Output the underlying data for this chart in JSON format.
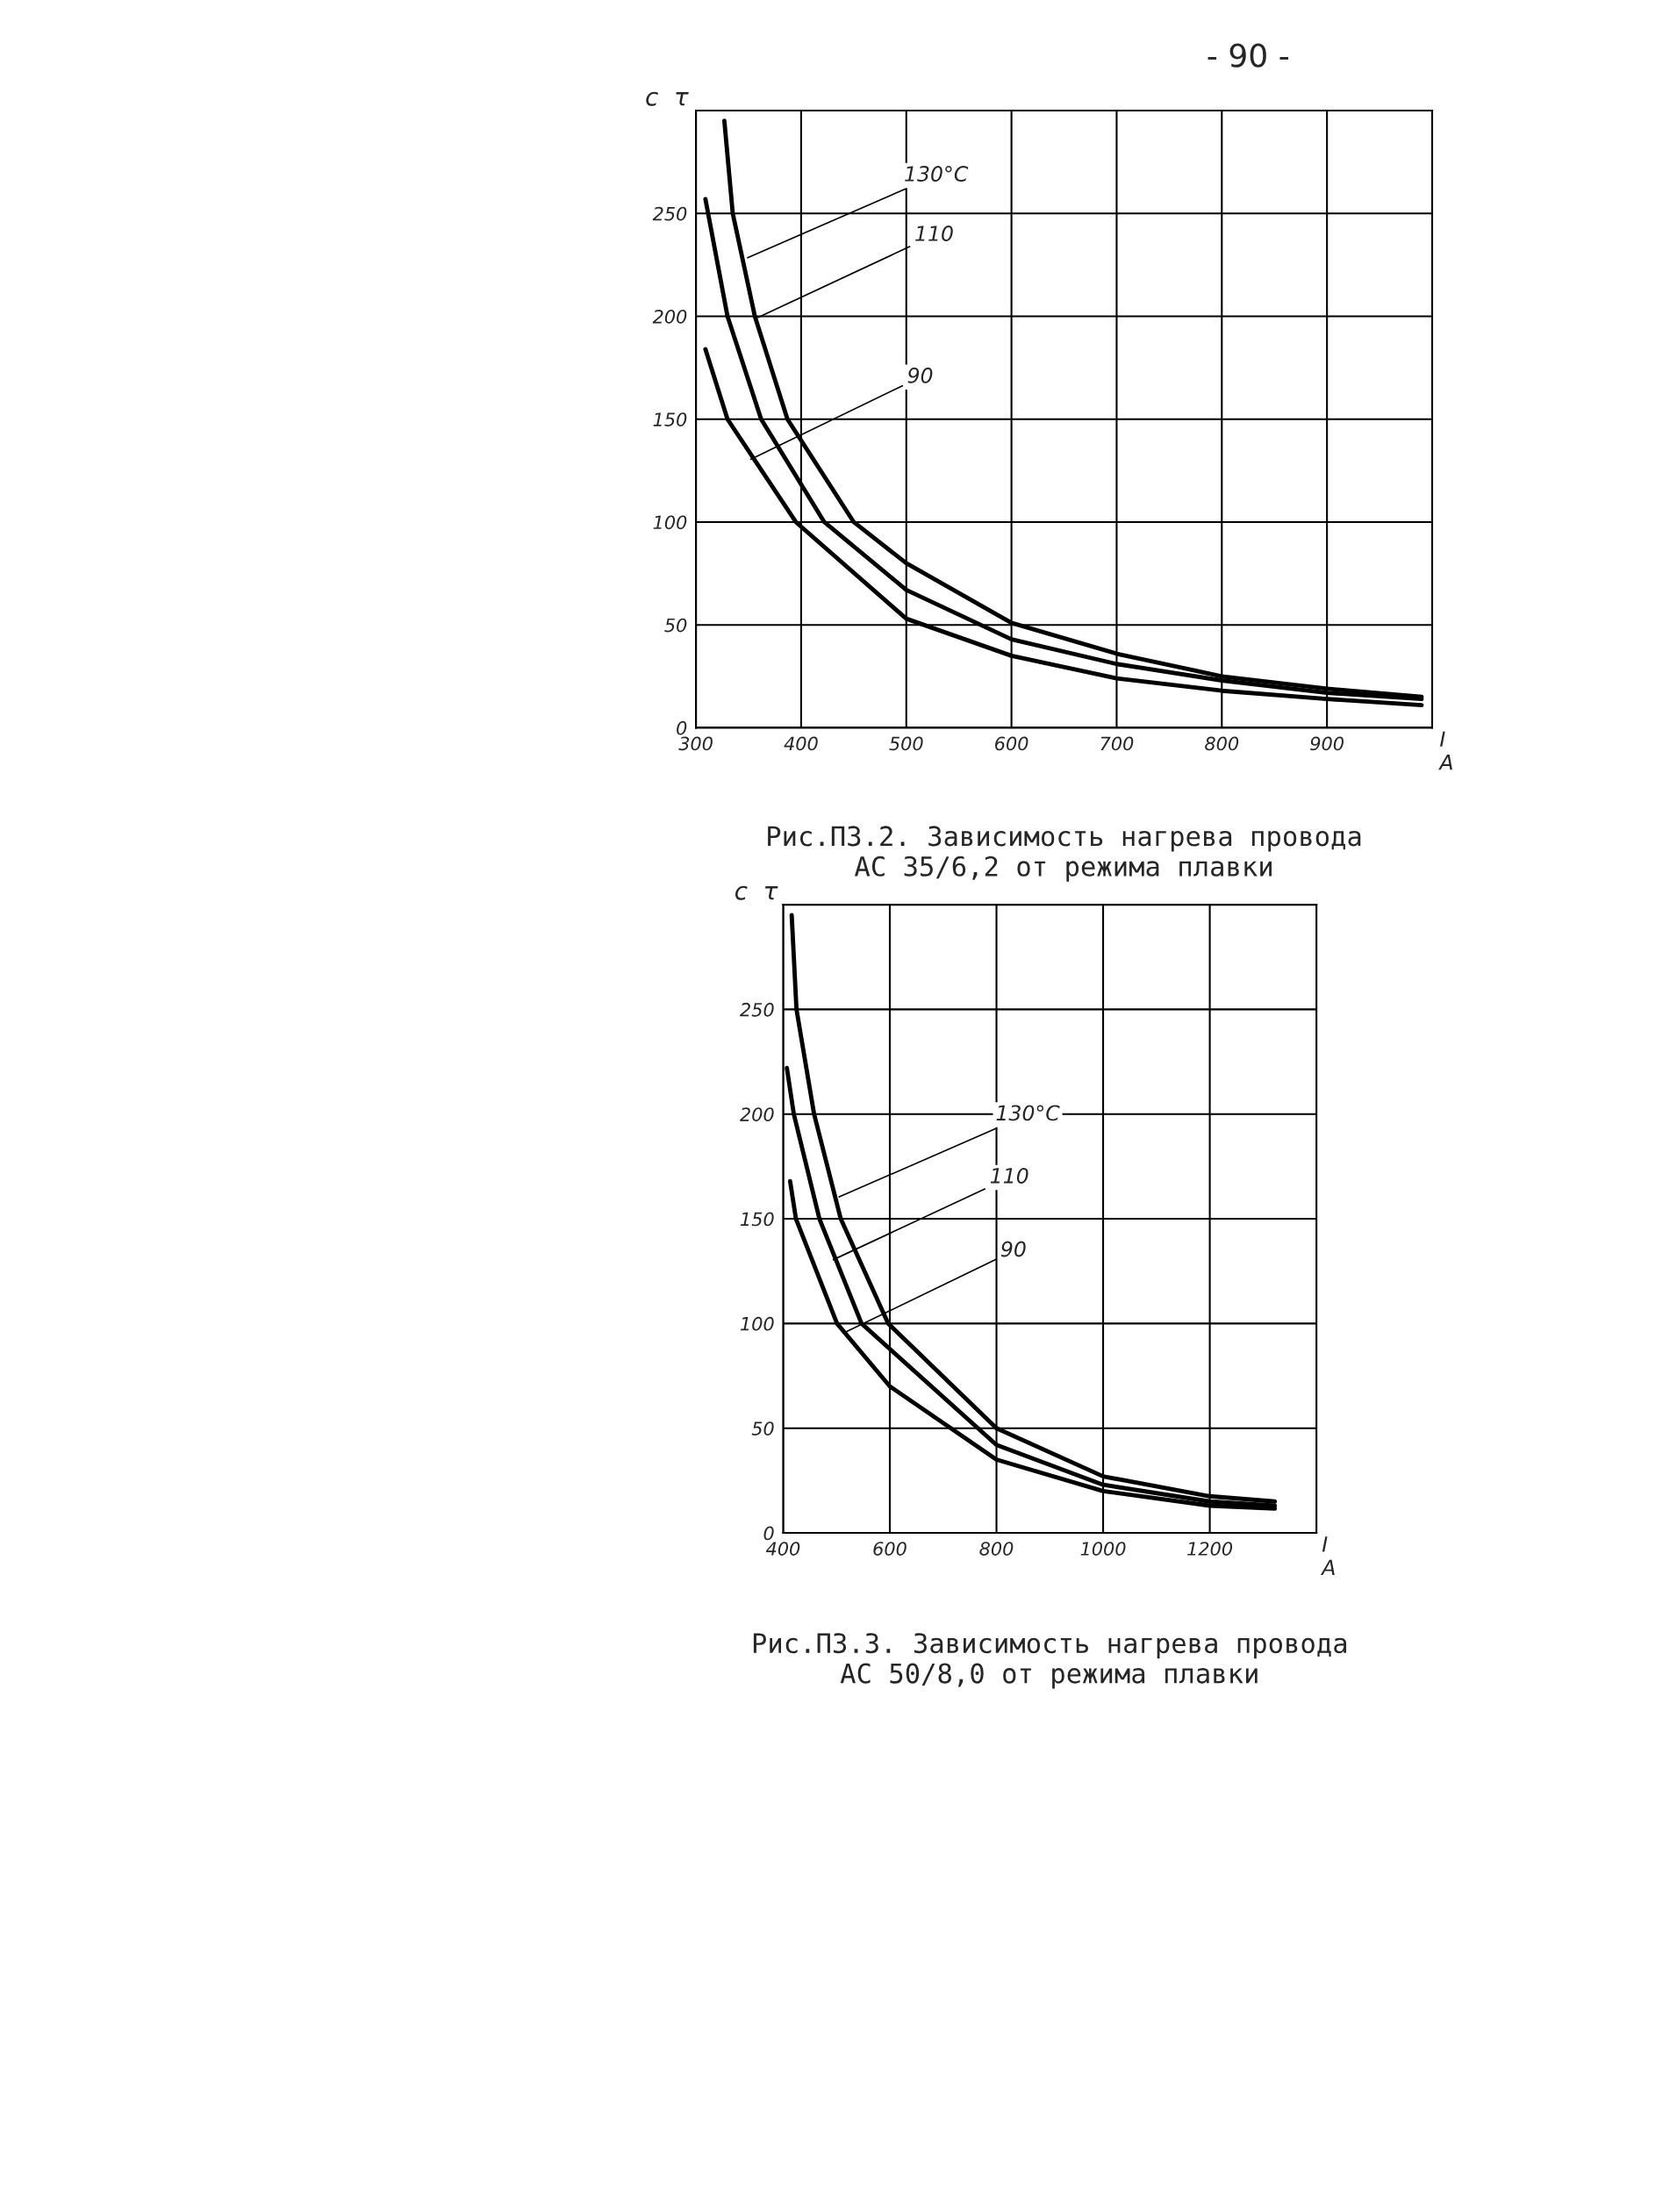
{
  "chart_data": [
    {
      "type": "line",
      "title": "Рис.П3.2. Зависимость нагрева провода\nАС 35/6,2 от режима плавки",
      "xlabel": "I\nА",
      "ylabel": "с  τ",
      "xlim": [
        300,
        1000
      ],
      "xticks": [
        300,
        400,
        500,
        600,
        700,
        800,
        900
      ],
      "ylim": [
        0,
        300
      ],
      "yticks": [
        0,
        50,
        100,
        150,
        200,
        250
      ],
      "grid": true,
      "marker": "none",
      "line_style": "solid",
      "series": [
        {
          "color": "#000000",
          "x": [
            327,
            335,
            356,
            387,
            450,
            500,
            600,
            700,
            800,
            900,
            990
          ],
          "values": [
            295,
            250,
            200,
            150,
            100,
            80,
            51,
            36,
            25,
            19,
            15
          ]
        },
        {
          "color": "#000000",
          "x": [
            309,
            330,
            362,
            422,
            500,
            600,
            700,
            800,
            900,
            990
          ],
          "values": [
            257,
            200,
            150,
            100,
            67,
            43,
            31,
            23,
            17,
            14
          ]
        },
        {
          "color": "#000000",
          "x": [
            309,
            330,
            395,
            500,
            600,
            700,
            800,
            900,
            990
          ],
          "values": [
            184,
            150,
            100,
            53,
            35,
            24,
            18,
            14,
            11
          ]
        }
      ],
      "annotations": [
        "- 90 -",
        {
          "text": "130°С",
          "x": 347,
          "y": 228
        },
        {
          "text": "110",
          "x": 357,
          "y": 199
        },
        {
          "text": "90",
          "x": 350,
          "y": 130
        }
      ]
    },
    {
      "type": "line",
      "title": "Рис.П3.3. Зависимость нагрева провода\nАС 50/8,0 от режима плавки",
      "xlabel": "I\nА",
      "ylabel": "с  τ",
      "xlim": [
        400,
        1400
      ],
      "xticks": [
        400,
        600,
        800,
        1000,
        1200
      ],
      "ylim": [
        0,
        300
      ],
      "yticks": [
        0,
        50,
        100,
        150,
        200,
        250
      ],
      "grid": true,
      "marker": "none",
      "line_style": "solid",
      "series": [
        {
          "color": "#000000",
          "x": [
            416,
            425,
            458,
            508,
            597,
            800,
            1000,
            1200,
            1322
          ],
          "values": [
            295,
            250,
            200,
            150,
            100,
            50,
            27,
            17.5,
            15
          ]
        },
        {
          "color": "#000000",
          "x": [
            407,
            420,
            468,
            547,
            800,
            1000,
            1200,
            1322
          ],
          "values": [
            222,
            200,
            150,
            100,
            42,
            23,
            15,
            13
          ]
        },
        {
          "color": "#000000",
          "x": [
            413,
            424,
            501,
            600,
            800,
            1000,
            1200,
            1322
          ],
          "values": [
            168,
            150,
            100,
            70,
            35,
            20,
            13,
            11.6
          ]
        }
      ],
      "annotations": [
        {
          "text": "130°С",
          "x": 501,
          "y": 160
        },
        {
          "text": "110",
          "x": 490,
          "y": 130
        },
        {
          "text": "90",
          "x": 510,
          "y": 95
        }
      ]
    }
  ]
}
